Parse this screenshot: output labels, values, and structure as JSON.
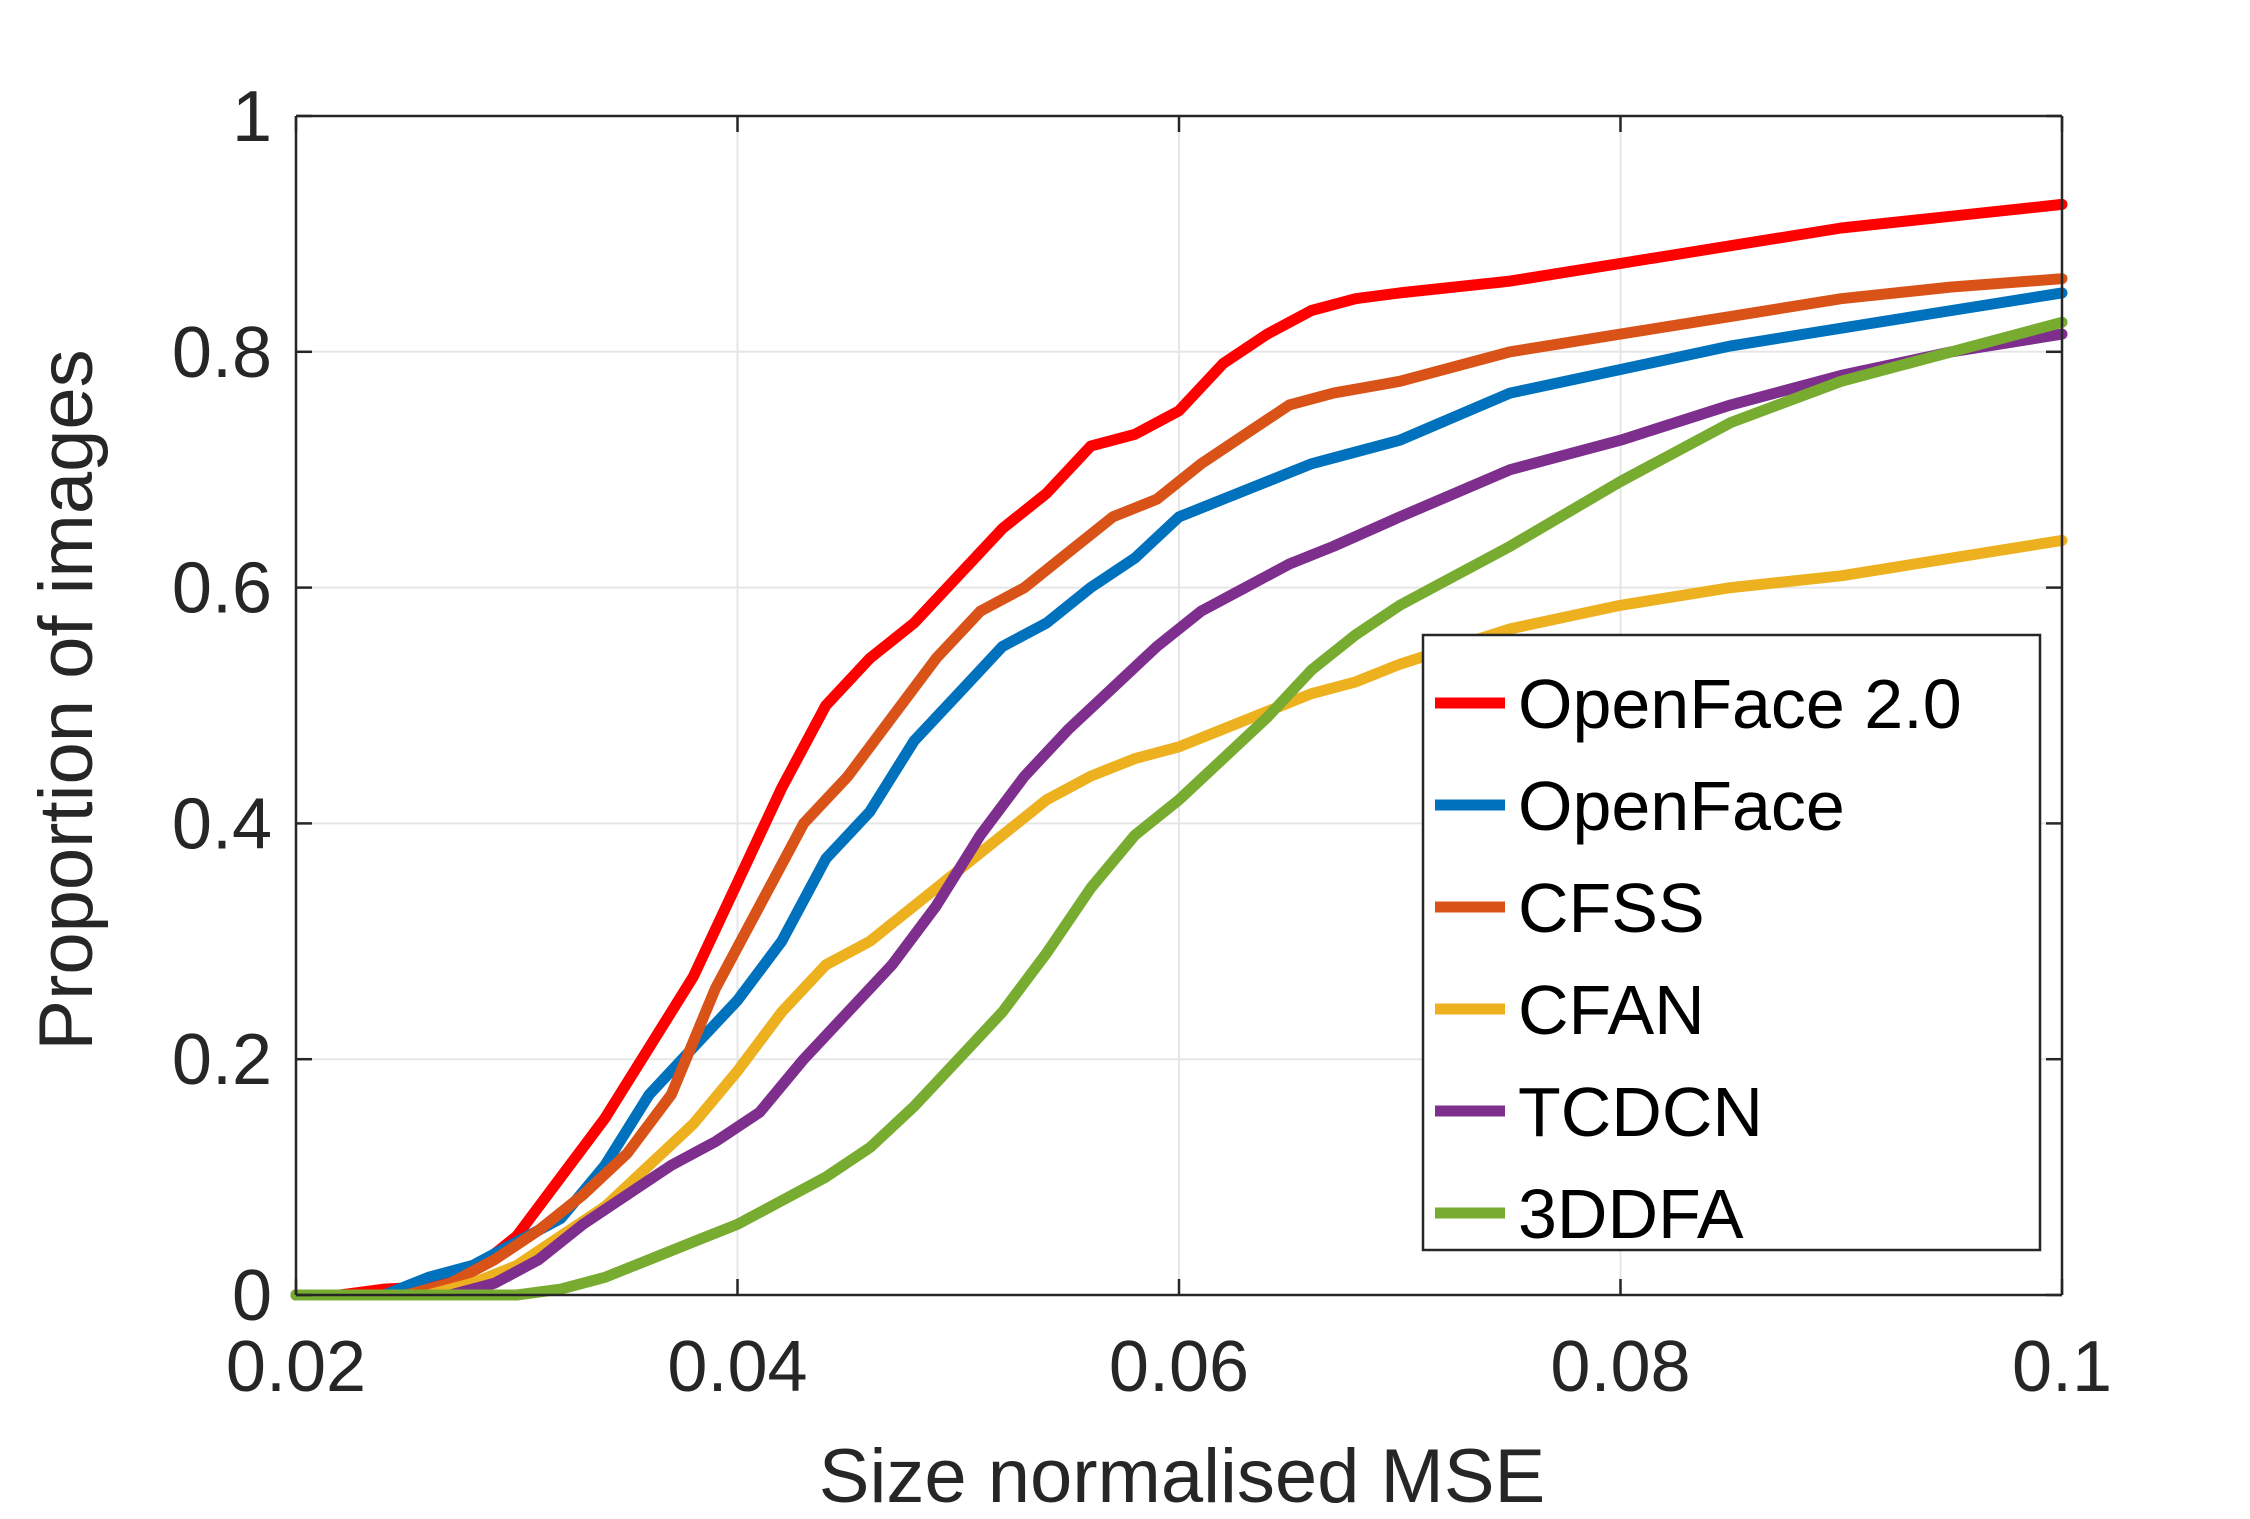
{
  "chart_data": {
    "type": "line",
    "xlabel": "Size normalised MSE",
    "ylabel": "Proportion of images",
    "xlim": [
      0.02,
      0.1
    ],
    "ylim": [
      0,
      1
    ],
    "xticks": [
      "0.02",
      "0.04",
      "0.06",
      "0.08",
      "0.1"
    ],
    "xtick_values": [
      0.02,
      0.04,
      0.06,
      0.08,
      0.1
    ],
    "yticks": [
      "0",
      "0.2",
      "0.4",
      "0.6",
      "0.8",
      "1"
    ],
    "ytick_values": [
      0,
      0.2,
      0.4,
      0.6,
      0.8,
      1
    ],
    "grid": true,
    "legend_position": "bottom-right",
    "series": [
      {
        "name": "OpenFace 2.0",
        "color": "#ff0000",
        "points": [
          [
            0.02,
            0
          ],
          [
            0.022,
            0
          ],
          [
            0.024,
            0.005
          ],
          [
            0.026,
            0.007
          ],
          [
            0.028,
            0.02
          ],
          [
            0.03,
            0.05
          ],
          [
            0.032,
            0.1
          ],
          [
            0.034,
            0.15
          ],
          [
            0.036,
            0.21
          ],
          [
            0.038,
            0.27
          ],
          [
            0.04,
            0.35
          ],
          [
            0.042,
            0.43
          ],
          [
            0.044,
            0.5
          ],
          [
            0.046,
            0.54
          ],
          [
            0.048,
            0.57
          ],
          [
            0.05,
            0.61
          ],
          [
            0.052,
            0.65
          ],
          [
            0.054,
            0.68
          ],
          [
            0.056,
            0.72
          ],
          [
            0.058,
            0.73
          ],
          [
            0.06,
            0.75
          ],
          [
            0.062,
            0.79
          ],
          [
            0.064,
            0.815
          ],
          [
            0.066,
            0.835
          ],
          [
            0.068,
            0.845
          ],
          [
            0.07,
            0.85
          ],
          [
            0.075,
            0.86
          ],
          [
            0.08,
            0.875
          ],
          [
            0.085,
            0.89
          ],
          [
            0.09,
            0.905
          ],
          [
            0.095,
            0.915
          ],
          [
            0.1,
            0.925
          ]
        ]
      },
      {
        "name": "OpenFace",
        "color": "#0072bd",
        "points": [
          [
            0.02,
            0
          ],
          [
            0.024,
            0
          ],
          [
            0.026,
            0.015
          ],
          [
            0.028,
            0.025
          ],
          [
            0.03,
            0.045
          ],
          [
            0.032,
            0.065
          ],
          [
            0.034,
            0.11
          ],
          [
            0.036,
            0.17
          ],
          [
            0.038,
            0.21
          ],
          [
            0.04,
            0.25
          ],
          [
            0.042,
            0.3
          ],
          [
            0.044,
            0.37
          ],
          [
            0.046,
            0.41
          ],
          [
            0.048,
            0.47
          ],
          [
            0.05,
            0.51
          ],
          [
            0.052,
            0.55
          ],
          [
            0.054,
            0.57
          ],
          [
            0.056,
            0.6
          ],
          [
            0.058,
            0.625
          ],
          [
            0.06,
            0.66
          ],
          [
            0.062,
            0.675
          ],
          [
            0.064,
            0.69
          ],
          [
            0.066,
            0.705
          ],
          [
            0.068,
            0.715
          ],
          [
            0.07,
            0.725
          ],
          [
            0.075,
            0.765
          ],
          [
            0.08,
            0.785
          ],
          [
            0.085,
            0.805
          ],
          [
            0.09,
            0.82
          ],
          [
            0.095,
            0.835
          ],
          [
            0.1,
            0.85
          ]
        ]
      },
      {
        "name": "CFSS",
        "color": "#d95319",
        "points": [
          [
            0.02,
            0
          ],
          [
            0.025,
            0
          ],
          [
            0.027,
            0.01
          ],
          [
            0.029,
            0.03
          ],
          [
            0.031,
            0.055
          ],
          [
            0.033,
            0.085
          ],
          [
            0.035,
            0.12
          ],
          [
            0.037,
            0.17
          ],
          [
            0.039,
            0.26
          ],
          [
            0.041,
            0.33
          ],
          [
            0.043,
            0.4
          ],
          [
            0.045,
            0.44
          ],
          [
            0.047,
            0.49
          ],
          [
            0.049,
            0.54
          ],
          [
            0.051,
            0.58
          ],
          [
            0.053,
            0.6
          ],
          [
            0.055,
            0.63
          ],
          [
            0.057,
            0.66
          ],
          [
            0.059,
            0.675
          ],
          [
            0.061,
            0.705
          ],
          [
            0.063,
            0.73
          ],
          [
            0.065,
            0.755
          ],
          [
            0.067,
            0.765
          ],
          [
            0.07,
            0.775
          ],
          [
            0.075,
            0.8
          ],
          [
            0.08,
            0.815
          ],
          [
            0.085,
            0.83
          ],
          [
            0.09,
            0.845
          ],
          [
            0.095,
            0.855
          ],
          [
            0.1,
            0.862
          ]
        ]
      },
      {
        "name": "CFAN",
        "color": "#edb120",
        "points": [
          [
            0.02,
            0
          ],
          [
            0.026,
            0
          ],
          [
            0.028,
            0.01
          ],
          [
            0.03,
            0.025
          ],
          [
            0.032,
            0.05
          ],
          [
            0.034,
            0.075
          ],
          [
            0.036,
            0.11
          ],
          [
            0.038,
            0.145
          ],
          [
            0.04,
            0.19
          ],
          [
            0.042,
            0.24
          ],
          [
            0.044,
            0.28
          ],
          [
            0.046,
            0.3
          ],
          [
            0.048,
            0.33
          ],
          [
            0.05,
            0.36
          ],
          [
            0.052,
            0.39
          ],
          [
            0.054,
            0.42
          ],
          [
            0.056,
            0.44
          ],
          [
            0.058,
            0.455
          ],
          [
            0.06,
            0.465
          ],
          [
            0.062,
            0.48
          ],
          [
            0.064,
            0.495
          ],
          [
            0.066,
            0.51
          ],
          [
            0.068,
            0.52
          ],
          [
            0.07,
            0.535
          ],
          [
            0.075,
            0.565
          ],
          [
            0.08,
            0.585
          ],
          [
            0.085,
            0.6
          ],
          [
            0.09,
            0.61
          ],
          [
            0.095,
            0.625
          ],
          [
            0.1,
            0.64
          ]
        ]
      },
      {
        "name": "TCDCN",
        "color": "#7e2f8e",
        "points": [
          [
            0.02,
            0
          ],
          [
            0.027,
            0
          ],
          [
            0.029,
            0.01
          ],
          [
            0.031,
            0.03
          ],
          [
            0.033,
            0.06
          ],
          [
            0.035,
            0.085
          ],
          [
            0.037,
            0.11
          ],
          [
            0.039,
            0.13
          ],
          [
            0.041,
            0.155
          ],
          [
            0.043,
            0.2
          ],
          [
            0.045,
            0.24
          ],
          [
            0.047,
            0.28
          ],
          [
            0.049,
            0.33
          ],
          [
            0.051,
            0.39
          ],
          [
            0.053,
            0.44
          ],
          [
            0.055,
            0.48
          ],
          [
            0.057,
            0.515
          ],
          [
            0.059,
            0.55
          ],
          [
            0.061,
            0.58
          ],
          [
            0.063,
            0.6
          ],
          [
            0.065,
            0.62
          ],
          [
            0.067,
            0.635
          ],
          [
            0.07,
            0.66
          ],
          [
            0.075,
            0.7
          ],
          [
            0.08,
            0.725
          ],
          [
            0.085,
            0.755
          ],
          [
            0.09,
            0.78
          ],
          [
            0.095,
            0.8
          ],
          [
            0.1,
            0.815
          ]
        ]
      },
      {
        "name": "3DDFA",
        "color": "#77ac30",
        "points": [
          [
            0.02,
            0
          ],
          [
            0.03,
            0
          ],
          [
            0.032,
            0.005
          ],
          [
            0.034,
            0.015
          ],
          [
            0.036,
            0.03
          ],
          [
            0.038,
            0.045
          ],
          [
            0.04,
            0.06
          ],
          [
            0.042,
            0.08
          ],
          [
            0.044,
            0.1
          ],
          [
            0.046,
            0.125
          ],
          [
            0.048,
            0.16
          ],
          [
            0.05,
            0.2
          ],
          [
            0.052,
            0.24
          ],
          [
            0.054,
            0.29
          ],
          [
            0.056,
            0.345
          ],
          [
            0.058,
            0.39
          ],
          [
            0.06,
            0.42
          ],
          [
            0.062,
            0.455
          ],
          [
            0.064,
            0.49
          ],
          [
            0.066,
            0.53
          ],
          [
            0.068,
            0.56
          ],
          [
            0.07,
            0.585
          ],
          [
            0.072,
            0.605
          ],
          [
            0.075,
            0.635
          ],
          [
            0.08,
            0.69
          ],
          [
            0.085,
            0.74
          ],
          [
            0.09,
            0.775
          ],
          [
            0.095,
            0.8
          ],
          [
            0.1,
            0.825
          ]
        ]
      }
    ]
  }
}
